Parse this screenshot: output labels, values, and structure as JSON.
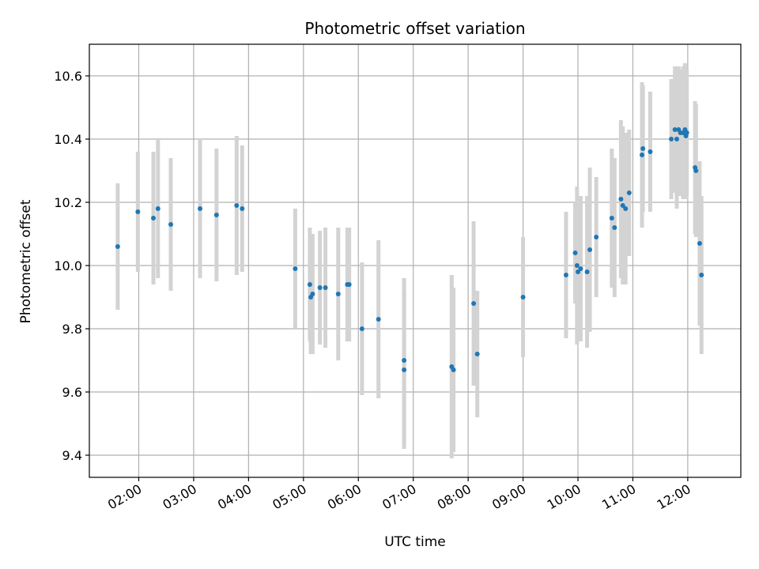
{
  "chart_data": {
    "type": "scatter",
    "title": "Photometric offset variation",
    "xlabel": "UTC time",
    "ylabel": "Photometric offset",
    "grid": true,
    "xlim": [
      "01:06",
      "12:58"
    ],
    "ylim": [
      9.33,
      10.7
    ],
    "x_ticks": [
      "02:00",
      "03:00",
      "04:00",
      "05:00",
      "06:00",
      "07:00",
      "08:00",
      "09:00",
      "10:00",
      "11:00",
      "12:00"
    ],
    "y_ticks": [
      "9.4",
      "9.6",
      "9.8",
      "10.0",
      "10.2",
      "10.4",
      "10.6"
    ],
    "colors": {
      "point": "#1f77b4",
      "errorbar": "#d3d3d3",
      "grid": "#b0b0b0"
    },
    "series": [
      {
        "x": [
          "01:37",
          "01:59",
          "02:16",
          "02:21",
          "02:35",
          "03:07",
          "03:25",
          "03:47",
          "03:53",
          "04:51",
          "05:07",
          "05:08",
          "05:10",
          "05:18",
          "05:24",
          "05:38",
          "05:48",
          "05:50",
          "06:04",
          "06:22",
          "06:50",
          "06:50",
          "07:42",
          "07:44",
          "08:06",
          "08:10",
          "09:00",
          "09:47",
          "09:57",
          "09:59",
          "10:00",
          "10:03",
          "10:10",
          "10:13",
          "10:20",
          "10:37",
          "10:40",
          "10:47",
          "10:49",
          "10:52",
          "10:56",
          "11:10",
          "11:11",
          "11:19",
          "11:42",
          "11:46",
          "11:48",
          "11:50",
          "11:52",
          "11:55",
          "11:57",
          "11:58",
          "11:59",
          "12:08",
          "12:09",
          "12:13",
          "12:15"
        ],
        "y": [
          10.06,
          10.17,
          10.15,
          10.18,
          10.13,
          10.18,
          10.16,
          10.19,
          10.18,
          9.99,
          9.94,
          9.9,
          9.91,
          9.93,
          9.93,
          9.91,
          9.94,
          9.94,
          9.8,
          9.83,
          9.7,
          9.67,
          9.68,
          9.67,
          9.88,
          9.72,
          9.9,
          9.97,
          10.04,
          10.0,
          9.98,
          9.99,
          9.98,
          10.05,
          10.09,
          10.15,
          10.12,
          10.21,
          10.19,
          10.18,
          10.23,
          10.35,
          10.37,
          10.36,
          10.4,
          10.43,
          10.4,
          10.43,
          10.42,
          10.42,
          10.43,
          10.41,
          10.42,
          10.31,
          10.3,
          10.07,
          9.97
        ],
        "yerr": [
          0.2,
          0.19,
          0.21,
          0.22,
          0.21,
          0.22,
          0.21,
          0.22,
          0.2,
          0.19,
          0.18,
          0.18,
          0.19,
          0.18,
          0.19,
          0.21,
          0.18,
          0.18,
          0.21,
          0.25,
          0.26,
          0.25,
          0.29,
          0.26,
          0.26,
          0.2,
          0.19,
          0.2,
          0.16,
          0.25,
          0.22,
          0.23,
          0.24,
          0.26,
          0.19,
          0.22,
          0.22,
          0.25,
          0.25,
          0.24,
          0.2,
          0.23,
          0.2,
          0.19,
          0.19,
          0.2,
          0.22,
          0.2,
          0.2,
          0.21,
          0.21,
          0.2,
          0.2,
          0.21,
          0.21,
          0.26,
          0.25
        ]
      }
    ]
  }
}
